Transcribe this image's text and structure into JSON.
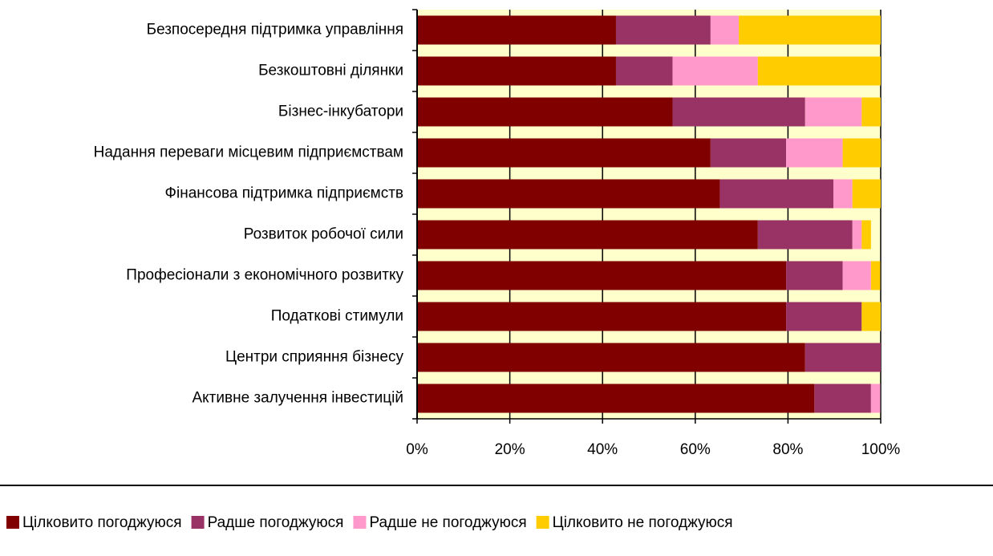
{
  "chart_data": {
    "type": "stacked-bar-horizontal",
    "categories": [
      "Безпосередня підтримка управління",
      "Безкоштовні ділянки",
      "Бізнес-інкубатори",
      "Надання переваги місцевим підприємствам",
      "Фінансова підтримка підприємств",
      "Розвиток робочої сили",
      "Професіонали з економічного розвитку",
      "Податкові стимули",
      "Центри сприяння бізнесу",
      "Активне залучення інвестицій"
    ],
    "series": [
      {
        "name": "Цілковито погоджуюся",
        "color": "#800000",
        "values": [
          42.9,
          42.9,
          55.1,
          63.3,
          65.3,
          73.5,
          79.6,
          79.6,
          83.7,
          85.7
        ]
      },
      {
        "name": "Радше погоджуюся",
        "color": "#993366",
        "values": [
          20.4,
          12.2,
          28.6,
          16.3,
          24.5,
          20.4,
          12.2,
          16.3,
          16.3,
          12.2
        ]
      },
      {
        "name": "Радше не погоджуюся",
        "color": "#ff99cc",
        "values": [
          6.1,
          18.4,
          12.2,
          12.2,
          4.1,
          2.0,
          6.1,
          0,
          0,
          2.0
        ]
      },
      {
        "name": "Цілковито не погоджуюся",
        "color": "#ffcc00",
        "values": [
          30.6,
          26.5,
          4.1,
          8.2,
          6.1,
          2.0,
          2.0,
          4.1,
          0,
          0
        ]
      }
    ],
    "xlim": [
      0,
      100
    ],
    "xticks": [
      {
        "value": 0,
        "label": "0%"
      },
      {
        "value": 20,
        "label": "20%"
      },
      {
        "value": 40,
        "label": "40%"
      },
      {
        "value": 60,
        "label": "60%"
      },
      {
        "value": 80,
        "label": "80%"
      },
      {
        "value": 100,
        "label": "100%"
      }
    ],
    "grid": true,
    "legend": "bottom"
  }
}
